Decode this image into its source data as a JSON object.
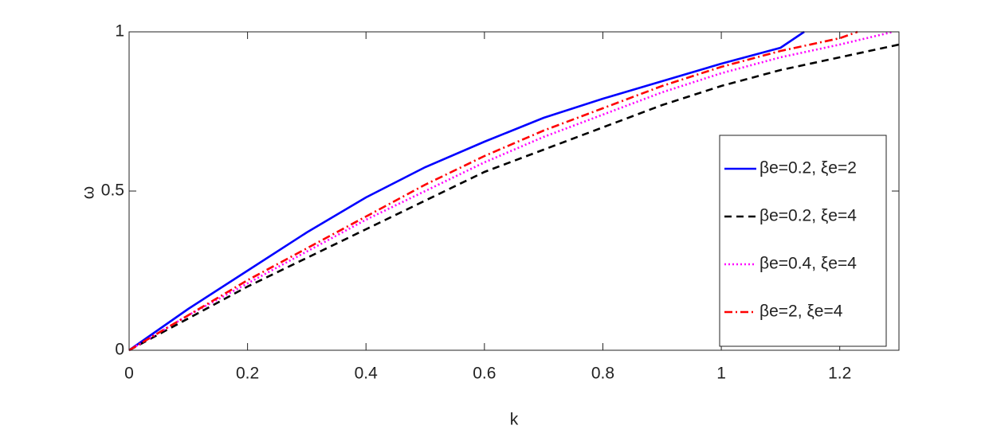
{
  "chart_data": {
    "type": "line",
    "xlabel": "k",
    "ylabel": "ω",
    "xlim": [
      0,
      1.3
    ],
    "ylim": [
      0,
      1
    ],
    "xticks": [
      0,
      0.2,
      0.4,
      0.6,
      0.8,
      1,
      1.2
    ],
    "yticks": [
      0,
      0.5,
      1
    ],
    "legend": "lower right",
    "series": [
      {
        "name": "βe=0.2,  ξe=2",
        "color": "#0000ff",
        "dash": "solid",
        "x": [
          0,
          0.1,
          0.2,
          0.3,
          0.4,
          0.5,
          0.6,
          0.7,
          0.8,
          0.9,
          1,
          1.1,
          1.14
        ],
        "values": [
          0,
          0.13,
          0.25,
          0.37,
          0.48,
          0.575,
          0.655,
          0.73,
          0.79,
          0.845,
          0.9,
          0.95,
          1
        ]
      },
      {
        "name": "βe=0.2,  ξe=4",
        "color": "#000000",
        "dash": "dashed",
        "x": [
          0,
          0.1,
          0.2,
          0.3,
          0.4,
          0.5,
          0.6,
          0.7,
          0.8,
          0.9,
          1,
          1.1,
          1.2,
          1.3
        ],
        "values": [
          0,
          0.1,
          0.2,
          0.29,
          0.38,
          0.47,
          0.56,
          0.63,
          0.7,
          0.77,
          0.83,
          0.88,
          0.92,
          0.96
        ]
      },
      {
        "name": "βe=0.4,  ξe=4",
        "color": "#ff00ff",
        "dash": "dotted",
        "x": [
          0,
          0.1,
          0.2,
          0.3,
          0.4,
          0.5,
          0.6,
          0.7,
          0.8,
          0.9,
          1,
          1.1,
          1.2,
          1.29
        ],
        "values": [
          0,
          0.11,
          0.21,
          0.31,
          0.41,
          0.5,
          0.59,
          0.67,
          0.74,
          0.81,
          0.87,
          0.92,
          0.96,
          1
        ]
      },
      {
        "name": "βe=2,  ξe=4",
        "color": "#ff0000",
        "dash": "dashdot",
        "x": [
          0,
          0.1,
          0.2,
          0.3,
          0.4,
          0.5,
          0.6,
          0.7,
          0.8,
          0.9,
          1,
          1.1,
          1.2,
          1.23
        ],
        "values": [
          0,
          0.11,
          0.22,
          0.32,
          0.42,
          0.52,
          0.61,
          0.69,
          0.76,
          0.83,
          0.89,
          0.94,
          0.98,
          1
        ]
      }
    ]
  }
}
